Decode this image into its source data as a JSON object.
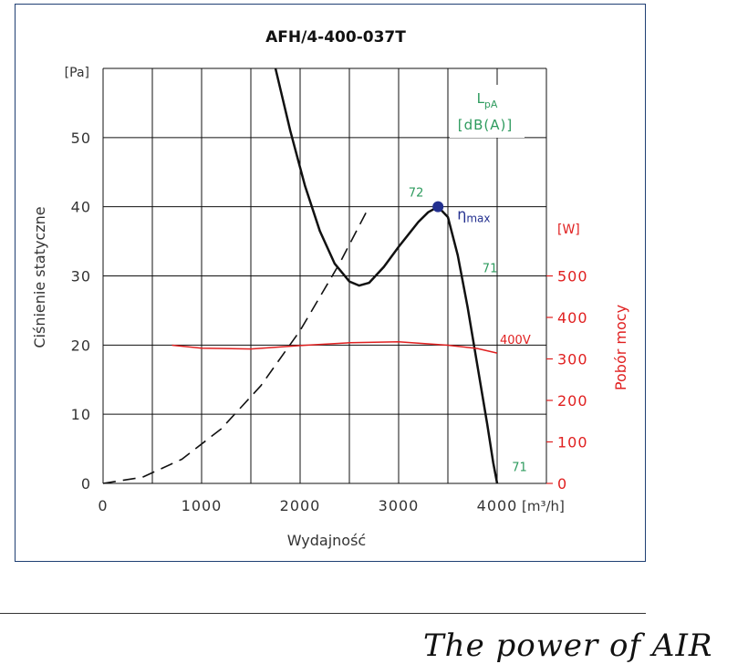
{
  "chart_data": {
    "type": "line",
    "title": "AFH/4-400-037T",
    "xlabel": "Wydajność",
    "x_unit": "[m³/h]",
    "ylabel": "Ciśnienie statyczne",
    "y_unit": "[Pa]",
    "y2label": "Pobór mocy",
    "y2_unit": "[W]",
    "xlim": [
      0,
      4500
    ],
    "ylim": [
      0,
      60
    ],
    "y2lim": [
      0,
      1000
    ],
    "x_ticks": [
      0,
      1000,
      2000,
      3000,
      4000
    ],
    "y_ticks": [
      0,
      10,
      20,
      30,
      40,
      50
    ],
    "y2_ticks": [
      0,
      100,
      200,
      300,
      400,
      500
    ],
    "grid": true,
    "noise_header": {
      "line1": "LpA",
      "line2": "[dB(A)]"
    },
    "series": [
      {
        "role": "pressure",
        "color": "#111111",
        "dash": "solid",
        "points": [
          [
            1750,
            60
          ],
          [
            1900,
            51
          ],
          [
            2050,
            43
          ],
          [
            2200,
            36.5
          ],
          [
            2350,
            31.8
          ],
          [
            2500,
            29.2
          ],
          [
            2600,
            28.6
          ],
          [
            2700,
            29.0
          ],
          [
            2850,
            31.3
          ],
          [
            3000,
            34.2
          ],
          [
            3200,
            37.8
          ],
          [
            3300,
            39.2
          ],
          [
            3400,
            40.0
          ],
          [
            3500,
            38.5
          ],
          [
            3600,
            33.0
          ],
          [
            3700,
            25.5
          ],
          [
            3800,
            17.0
          ],
          [
            3900,
            8.5
          ],
          [
            3960,
            3.0
          ],
          [
            4000,
            0
          ]
        ]
      },
      {
        "role": "system",
        "color": "#111111",
        "dash": "long-dash",
        "points": [
          [
            0,
            0
          ],
          [
            400,
            0.9
          ],
          [
            800,
            3.5
          ],
          [
            1200,
            7.9
          ],
          [
            1600,
            14.1
          ],
          [
            2000,
            22.1
          ],
          [
            2400,
            31.8
          ],
          [
            2700,
            40.0
          ]
        ]
      },
      {
        "role": "power",
        "name": "400V",
        "color": "#e02020",
        "dash": "solid",
        "axis": "right",
        "points": [
          [
            700,
            333
          ],
          [
            1000,
            326
          ],
          [
            1500,
            324
          ],
          [
            2000,
            332
          ],
          [
            2500,
            339
          ],
          [
            3000,
            341
          ],
          [
            3500,
            333
          ],
          [
            3800,
            325
          ],
          [
            4000,
            314
          ]
        ]
      }
    ],
    "annotations": [
      {
        "text": "72",
        "x": 3100,
        "y": 41.5,
        "color": "#2e9b5e"
      },
      {
        "text": "71",
        "x": 3850,
        "y": 30.5,
        "color": "#2e9b5e"
      },
      {
        "text": "71",
        "x": 4150,
        "y": 1.8,
        "color": "#2e9b5e"
      }
    ],
    "eta_max": {
      "x": 3400,
      "y": 40,
      "label": "η",
      "sub": "max",
      "color": "#23308f"
    }
  },
  "footer": {
    "slogan": "The power of AIR"
  }
}
